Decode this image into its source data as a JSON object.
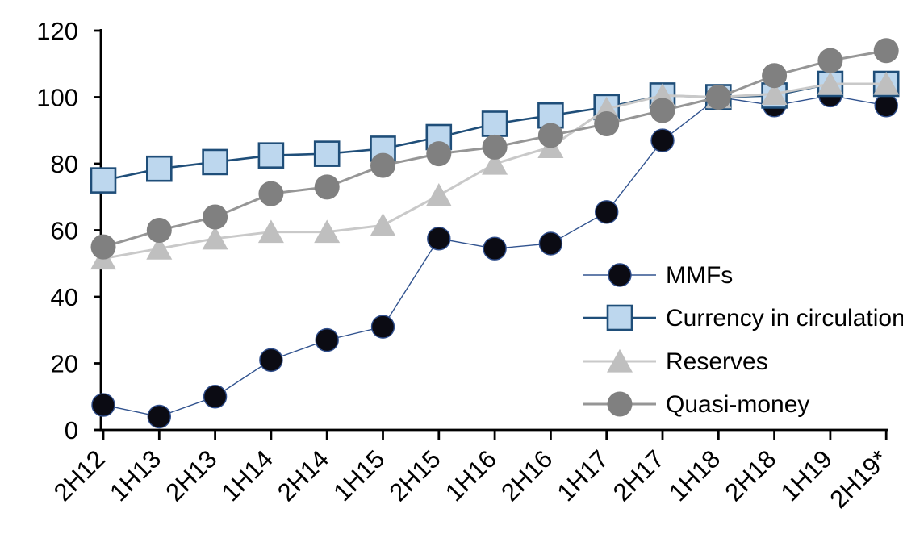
{
  "chart_data": {
    "type": "line",
    "title": "",
    "xlabel": "",
    "ylabel": "",
    "categories": [
      "2H12",
      "1H13",
      "2H13",
      "1H14",
      "2H14",
      "1H15",
      "2H15",
      "1H16",
      "2H16",
      "1H17",
      "2H17",
      "1H18",
      "2H18",
      "1H19",
      "2H19*"
    ],
    "series": [
      {
        "name": "MMFs",
        "marker": "circle",
        "marker_size": 14,
        "fill": "#0B0B13",
        "stroke": "#2F4D8A",
        "stroke_width": 1.4,
        "line_color": "#31538F",
        "line_width": 1.4,
        "values": [
          7.5,
          4,
          10,
          21,
          27,
          31,
          57.5,
          54.5,
          56,
          65.5,
          87,
          100,
          97.5,
          100.5,
          97.5
        ]
      },
      {
        "name": "Currency in circulation",
        "marker": "square",
        "marker_size": 15,
        "fill": "#BDD7EE",
        "stroke": "#1F4E79",
        "stroke_width": 2.6,
        "line_color": "#1F4E79",
        "line_width": 2.6,
        "values": [
          75,
          78.5,
          80.5,
          82.5,
          83,
          84.5,
          88,
          92,
          94.5,
          97,
          100.5,
          100,
          100.5,
          104,
          104
        ]
      },
      {
        "name": "Reserves",
        "marker": "triangle",
        "marker_size": 16,
        "fill": "#BFBFBF",
        "stroke": "none",
        "stroke_width": 0,
        "line_color": "#C9C9C9",
        "line_width": 3,
        "values": [
          51.5,
          54.5,
          57.5,
          59.5,
          59.5,
          61.5,
          70.5,
          80,
          85,
          96.5,
          100.5,
          100,
          101,
          104,
          104
        ]
      },
      {
        "name": "Quasi-money",
        "marker": "circle",
        "marker_size": 15.5,
        "fill": "#808080",
        "stroke": "none",
        "stroke_width": 0,
        "line_color": "#969696",
        "line_width": 3,
        "values": [
          55,
          60,
          64,
          71,
          73,
          79.5,
          83,
          85,
          88.5,
          92,
          96,
          100,
          106.5,
          111,
          114
        ]
      }
    ],
    "ylim": [
      0,
      120
    ],
    "yticks": [
      0,
      20,
      40,
      60,
      80,
      100,
      120
    ],
    "grid": false,
    "axis_color": "#000000",
    "legend_position": "inside-right",
    "x_label_rotation": -45
  }
}
